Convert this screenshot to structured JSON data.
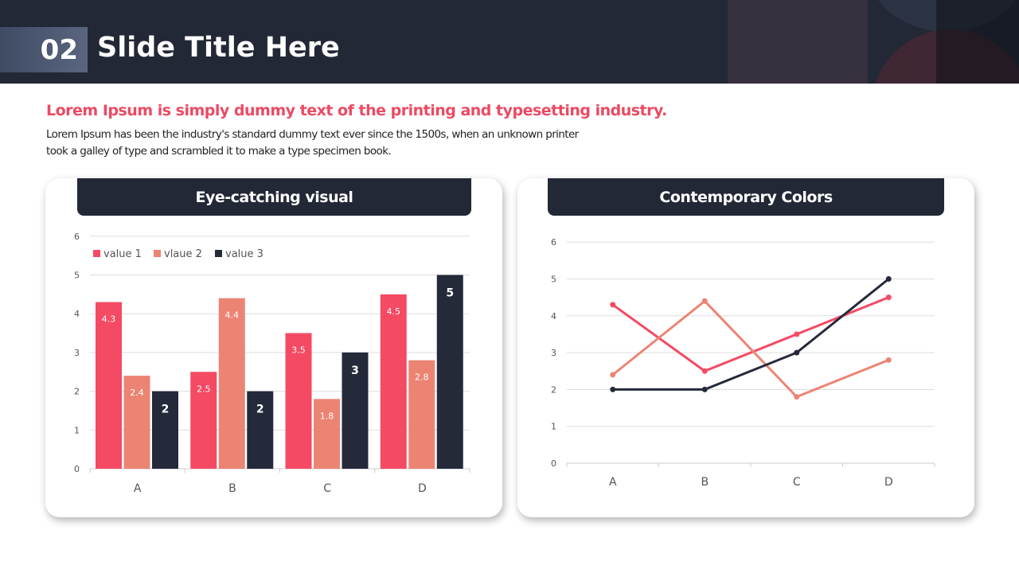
{
  "slide": {
    "number": "02",
    "title": "Slide Title Here",
    "subtitle": "Lorem Ipsum is simply dummy text of the printing and typesetting industry.",
    "description": "Lorem Ipsum has been the industry's standard dummy text ever since the 1500s, when an unknown printer took a galley of type and scrambled it to make a type specimen book."
  },
  "colors": {
    "series": [
      "#f44a63",
      "#ec8474",
      "#252a3a"
    ],
    "header": "#232836",
    "accent": "#ec4a63"
  },
  "chart_data": [
    {
      "type": "bar",
      "title": "Eye-catching visual",
      "categories": [
        "A",
        "B",
        "C",
        "D"
      ],
      "series": [
        {
          "name": "value 1",
          "values": [
            4.3,
            2.5,
            3.5,
            4.5
          ]
        },
        {
          "name": "vlaue 2",
          "values": [
            2.4,
            4.4,
            1.8,
            2.8
          ]
        },
        {
          "name": "value 3",
          "values": [
            2,
            2,
            3,
            5
          ]
        }
      ],
      "yticks": [
        "0",
        "1",
        "2",
        "3",
        "4",
        "5",
        "6"
      ],
      "ylim": [
        0,
        6
      ],
      "legend": "top-left",
      "grid": true
    },
    {
      "type": "line",
      "title": "Contemporary Colors",
      "categories": [
        "A",
        "B",
        "C",
        "D"
      ],
      "series": [
        {
          "name": "value 1",
          "values": [
            4.3,
            2.5,
            3.5,
            4.5
          ]
        },
        {
          "name": "vlaue 2",
          "values": [
            2.4,
            4.4,
            1.8,
            2.8
          ]
        },
        {
          "name": "value 3",
          "values": [
            2,
            2,
            3,
            5
          ]
        }
      ],
      "yticks": [
        "0",
        "1",
        "2",
        "3",
        "4",
        "5",
        "6"
      ],
      "ylim": [
        0,
        6
      ],
      "grid": true
    }
  ]
}
